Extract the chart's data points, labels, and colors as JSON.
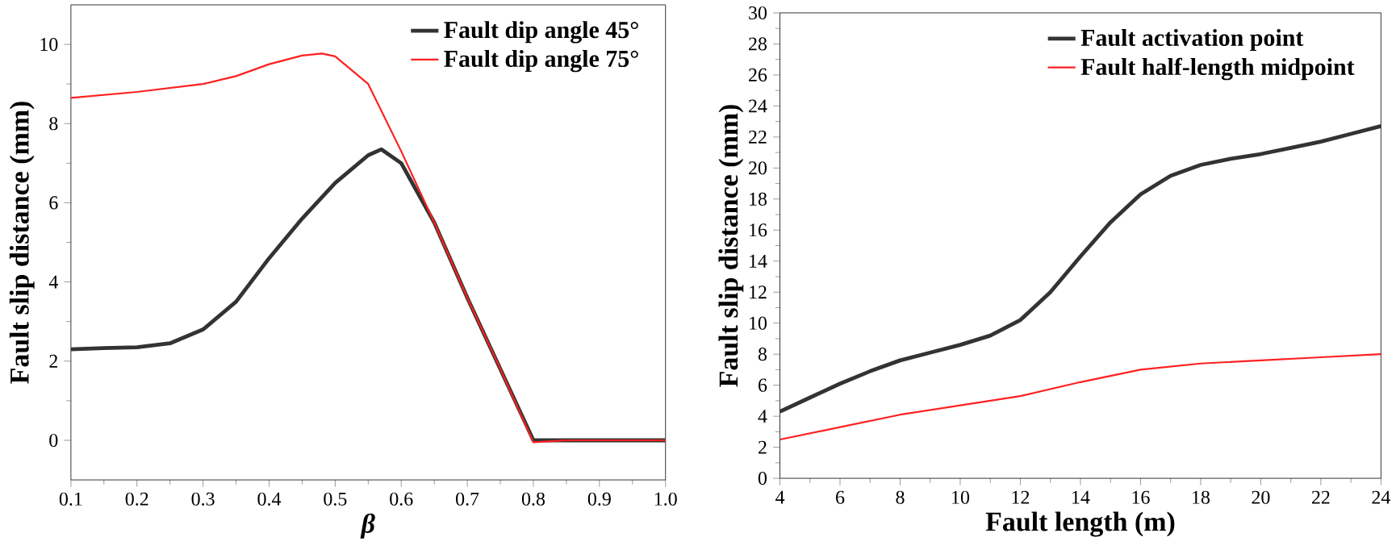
{
  "chart_data": [
    {
      "type": "line",
      "xlabel": "β",
      "ylabel": "Fault slip distance (mm)",
      "xlim": [
        0.1,
        1.0
      ],
      "ylim": [
        -1,
        11
      ],
      "xticks": [
        {
          "value": 0.1,
          "label": "0.1"
        },
        {
          "value": 0.2,
          "label": "0.2"
        },
        {
          "value": 0.3,
          "label": "0.3"
        },
        {
          "value": 0.4,
          "label": "0.4"
        },
        {
          "value": 0.5,
          "label": "0.5"
        },
        {
          "value": 0.6,
          "label": "0.6"
        },
        {
          "value": 0.7,
          "label": "0.7"
        },
        {
          "value": 0.8,
          "label": "0.8"
        },
        {
          "value": 0.9,
          "label": "0.9"
        },
        {
          "value": 1.0,
          "label": "1.0"
        }
      ],
      "yticks": [
        0,
        2,
        4,
        6,
        8,
        10
      ],
      "legend": "top right",
      "x": [
        0.1,
        0.15,
        0.2,
        0.25,
        0.3,
        0.35,
        0.4,
        0.45,
        0.5,
        0.55,
        0.57,
        0.6,
        0.65,
        0.7,
        0.75,
        0.8,
        0.85,
        0.9,
        0.95,
        1.0
      ],
      "series": [
        {
          "name": "Fault dip angle 45°",
          "color": "#333333",
          "values": [
            2.3,
            2.33,
            2.35,
            2.45,
            2.8,
            3.5,
            4.6,
            5.6,
            6.5,
            7.2,
            7.35,
            7.0,
            5.5,
            3.6,
            1.8,
            0,
            0,
            0,
            0,
            0
          ]
        },
        {
          "name": "Fault dip angle 75°",
          "color": "#ff2020",
          "x": [
            0.1,
            0.2,
            0.3,
            0.35,
            0.4,
            0.45,
            0.48,
            0.5,
            0.55,
            0.6,
            0.65,
            0.7,
            0.75,
            0.8,
            0.85,
            0.9,
            0.95,
            1.0
          ],
          "values": [
            8.65,
            8.8,
            9.0,
            9.2,
            9.5,
            9.72,
            9.77,
            9.7,
            9.0,
            7.3,
            5.5,
            3.6,
            1.8,
            -0.05,
            0,
            0,
            0,
            0
          ]
        }
      ]
    },
    {
      "type": "line",
      "xlabel": "Fault length (m)",
      "ylabel": "Fault slip distance (mm)",
      "xlim": [
        4,
        24
      ],
      "ylim": [
        0,
        30
      ],
      "xticks": [
        4,
        6,
        8,
        10,
        12,
        14,
        16,
        18,
        20,
        22,
        24
      ],
      "yticks": [
        0,
        2,
        4,
        6,
        8,
        10,
        12,
        14,
        16,
        18,
        20,
        22,
        24,
        26,
        28,
        30
      ],
      "legend": "top right",
      "x": [
        4,
        5,
        6,
        7,
        8,
        9,
        10,
        11,
        12,
        13,
        14,
        15,
        16,
        17,
        18,
        19,
        20,
        21,
        22,
        23,
        24
      ],
      "series": [
        {
          "name": "Fault activation point",
          "color": "#333333",
          "values": [
            4.3,
            5.2,
            6.1,
            6.9,
            7.6,
            8.1,
            8.6,
            9.2,
            10.2,
            12.0,
            14.3,
            16.5,
            18.3,
            19.5,
            20.2,
            20.6,
            20.9,
            21.3,
            21.7,
            22.2,
            22.7
          ]
        },
        {
          "name": "Fault half-length midpoint",
          "color": "#ff2020",
          "x": [
            4,
            6,
            8,
            10,
            12,
            14,
            16,
            18,
            20,
            22,
            24
          ],
          "values": [
            2.5,
            3.3,
            4.1,
            4.7,
            5.3,
            6.2,
            7.0,
            7.4,
            7.6,
            7.8,
            8.0
          ]
        }
      ]
    }
  ]
}
